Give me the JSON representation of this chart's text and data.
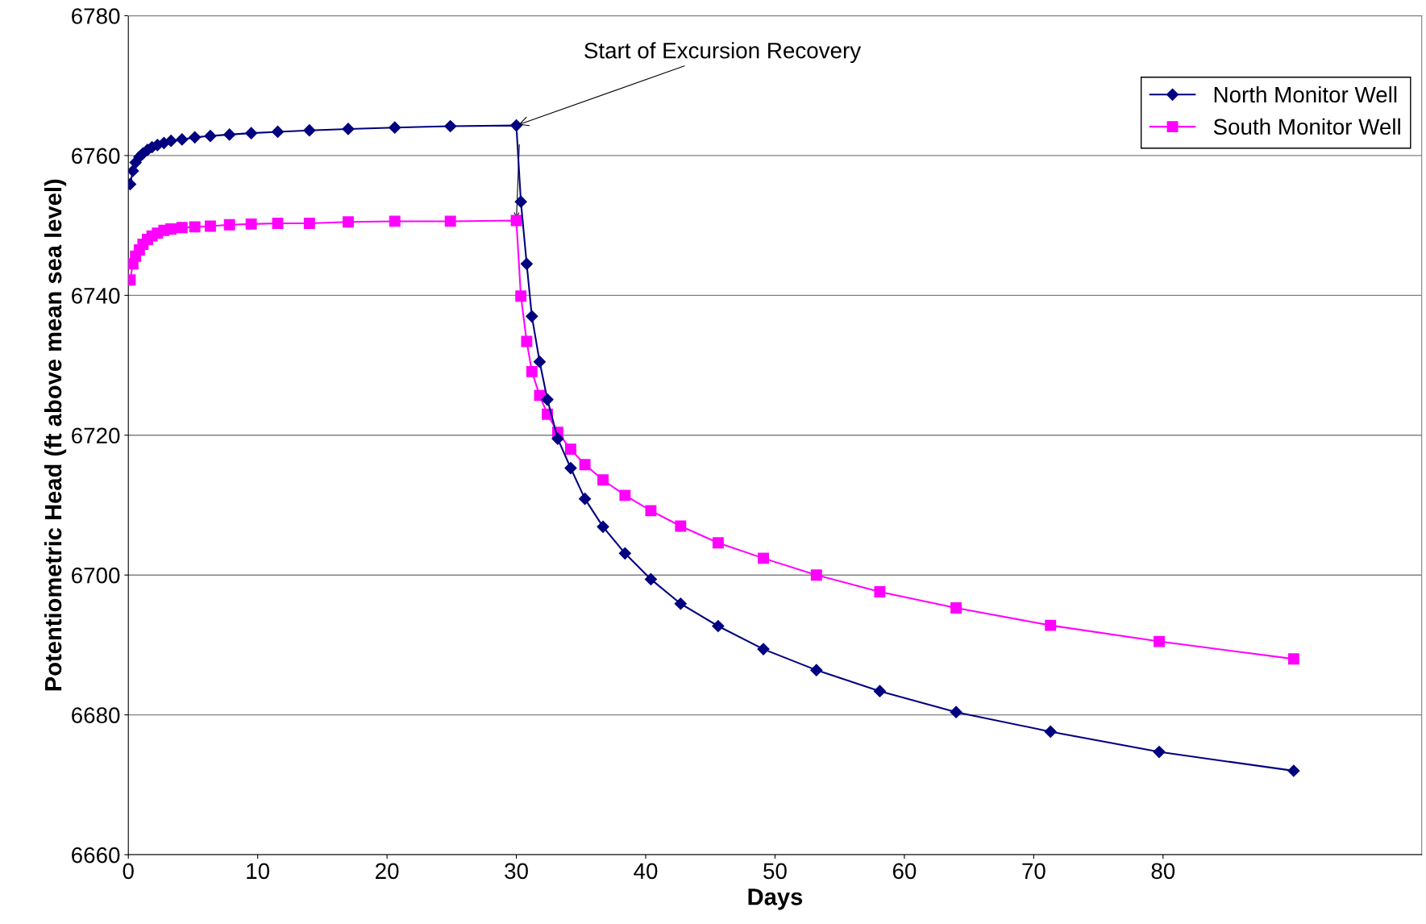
{
  "chart_data": {
    "type": "line",
    "xlabel": "Days",
    "ylabel": "Potentiometric Head (ft above mean sea level)",
    "x": [
      0.14,
      0.35,
      0.56,
      0.85,
      1.13,
      1.48,
      1.83,
      2.25,
      2.75,
      3.3,
      4.15,
      5.14,
      6.34,
      7.82,
      9.5,
      11.55,
      14.0,
      17.0,
      20.6,
      24.9,
      30.0,
      30.35,
      30.8,
      31.2,
      31.8,
      32.4,
      33.2,
      34.2,
      35.3,
      36.7,
      38.4,
      40.4,
      42.7,
      45.6,
      49.1,
      53.2,
      58.1,
      64.0,
      71.3,
      79.7,
      90.1
    ],
    "series": [
      {
        "name": "North Monitor Well",
        "color": "#000080",
        "marker": "diamond",
        "values": [
          6755.9,
          6757.8,
          6759.0,
          6759.8,
          6760.3,
          6760.8,
          6761.2,
          6761.5,
          6761.8,
          6762.1,
          6762.3,
          6762.6,
          6762.8,
          6763.0,
          6763.2,
          6763.4,
          6763.6,
          6763.8,
          6764.0,
          6764.2,
          6764.3,
          6753.4,
          6744.5,
          6737.0,
          6730.5,
          6725.1,
          6719.5,
          6715.3,
          6710.9,
          6706.9,
          6703.1,
          6699.4,
          6695.9,
          6692.7,
          6689.4,
          6686.4,
          6683.4,
          6680.4,
          6677.6,
          6674.7,
          6672.0
        ]
      },
      {
        "name": "South Monitor Well",
        "color": "#ff00ff",
        "marker": "square",
        "values": [
          6742.2,
          6744.5,
          6745.6,
          6746.5,
          6747.3,
          6748.0,
          6748.5,
          6748.9,
          6749.3,
          6749.5,
          6749.7,
          6749.8,
          6749.9,
          6750.1,
          6750.2,
          6750.3,
          6750.3,
          6750.5,
          6750.6,
          6750.6,
          6750.7,
          6739.9,
          6733.4,
          6729.1,
          6725.7,
          6723.0,
          6720.4,
          6718.0,
          6715.8,
          6713.6,
          6711.4,
          6709.2,
          6707.0,
          6704.6,
          6702.4,
          6700.0,
          6697.6,
          6695.3,
          6692.8,
          6690.5,
          6688.0
        ]
      }
    ],
    "xlim": [
      0,
      100
    ],
    "xticks": [
      0,
      10,
      20,
      30,
      40,
      50,
      60,
      70,
      80
    ],
    "ylim": [
      6660,
      6780
    ],
    "yticks": [
      6660,
      6680,
      6700,
      6720,
      6740,
      6760,
      6780
    ],
    "grid": "y",
    "legend": "top right",
    "line_style": "solid",
    "annotations": [
      {
        "text": "Start of Excursion Recovery",
        "x": 30.0,
        "y": 6764.3
      }
    ]
  }
}
